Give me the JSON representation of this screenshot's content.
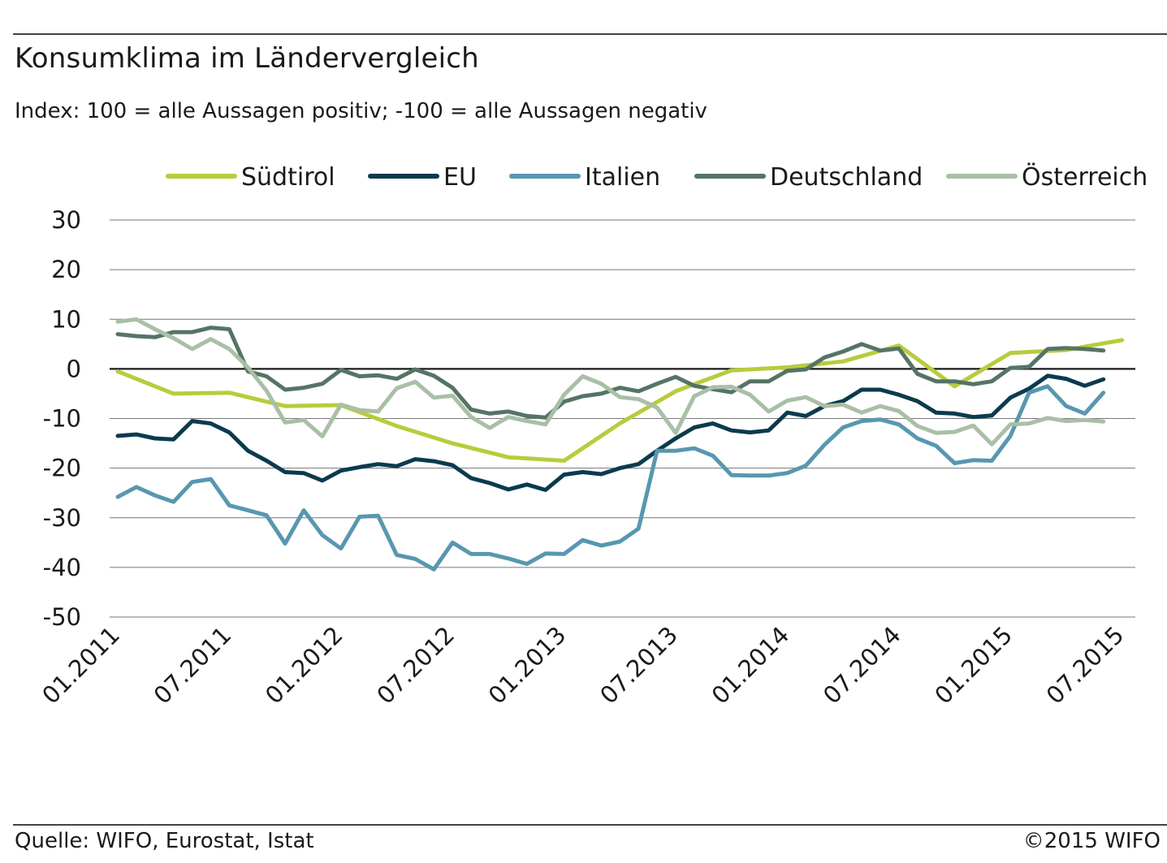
{
  "header": {
    "title": "Konsumklima im Ländervergleich",
    "subtitle": "Index: 100 = alle Aussagen positiv; -100 =  alle Aussagen negativ"
  },
  "footer": {
    "source": "Quelle: WIFO, Eurostat, Istat",
    "copyright": "©2015 WIFO"
  },
  "chart_data": {
    "type": "line",
    "title": "Konsumklima im Ländervergleich",
    "subtitle": "Index: 100 = alle Aussagen positiv; -100 =  alle Aussagen negativ",
    "xlabel": "",
    "ylabel": "",
    "ylim": [
      -50,
      30
    ],
    "yticks": [
      30,
      20,
      10,
      0,
      -10,
      -20,
      -30,
      -40,
      -50
    ],
    "x_tick_labels": [
      "01.2011",
      "07.2011",
      "01.2012",
      "07.2012",
      "01.2013",
      "07.2013",
      "01.2014",
      "07.2014",
      "01.2015",
      "07.2015"
    ],
    "x_tick_dates": [
      "2011-01",
      "2011-07",
      "2012-01",
      "2012-07",
      "2013-01",
      "2013-07",
      "2014-01",
      "2014-07",
      "2015-01",
      "2015-07"
    ],
    "grid": "horizontal",
    "legend": "top",
    "series": [
      {
        "name": "Südtirol",
        "color": "#b8cc3c",
        "x": [
          "2011-01",
          "2011-04",
          "2011-07",
          "2011-10",
          "2012-01",
          "2012-04",
          "2012-07",
          "2012-10",
          "2013-01",
          "2013-04",
          "2013-07",
          "2013-10",
          "2014-01",
          "2014-04",
          "2014-07",
          "2014-10",
          "2015-01",
          "2015-04",
          "2015-07"
        ],
        "values": [
          -0.5,
          -5,
          -4.8,
          -7.5,
          -7.3,
          -11.5,
          -15,
          -17.8,
          -18.5,
          -11,
          -4.5,
          -0.3,
          0.3,
          1.5,
          4.7,
          -3.5,
          3.2,
          3.8,
          5.8
        ]
      },
      {
        "name": "EU",
        "color": "#0b3a4e",
        "x": [
          "2011-01",
          "2011-02",
          "2011-03",
          "2011-04",
          "2011-05",
          "2011-06",
          "2011-07",
          "2011-08",
          "2011-09",
          "2011-10",
          "2011-11",
          "2011-12",
          "2012-01",
          "2012-02",
          "2012-03",
          "2012-04",
          "2012-05",
          "2012-06",
          "2012-07",
          "2012-08",
          "2012-09",
          "2012-10",
          "2012-11",
          "2012-12",
          "2013-01",
          "2013-02",
          "2013-03",
          "2013-04",
          "2013-05",
          "2013-06",
          "2013-07",
          "2013-08",
          "2013-09",
          "2013-10",
          "2013-11",
          "2013-12",
          "2014-01",
          "2014-02",
          "2014-03",
          "2014-04",
          "2014-05",
          "2014-06",
          "2014-07",
          "2014-08",
          "2014-09",
          "2014-10",
          "2014-11",
          "2014-12",
          "2015-01",
          "2015-02",
          "2015-03",
          "2015-04",
          "2015-05",
          "2015-06"
        ],
        "values": [
          -13.5,
          -13.2,
          -14,
          -14.2,
          -10.5,
          -11,
          -12.8,
          -16.5,
          -18.5,
          -20.8,
          -21,
          -22.5,
          -20.5,
          -19.8,
          -19.2,
          -19.6,
          -18.2,
          -18.6,
          -19.4,
          -22,
          -23,
          -24.3,
          -23.3,
          -24.4,
          -21.3,
          -20.8,
          -21.2,
          -20,
          -19.2,
          -16.5,
          -14,
          -11.8,
          -11,
          -12.4,
          -12.8,
          -12.4,
          -8.8,
          -9.5,
          -7.5,
          -6.5,
          -4.2,
          -4.2,
          -5.2,
          -6.5,
          -8.8,
          -9,
          -9.7,
          -9.4,
          -5.8,
          -4,
          -1.4,
          -2,
          -3.4,
          -2.1
        ]
      },
      {
        "name": "Italien",
        "color": "#5897b0",
        "x": [
          "2011-01",
          "2011-02",
          "2011-03",
          "2011-04",
          "2011-05",
          "2011-06",
          "2011-07",
          "2011-08",
          "2011-09",
          "2011-10",
          "2011-11",
          "2011-12",
          "2012-01",
          "2012-02",
          "2012-03",
          "2012-04",
          "2012-05",
          "2012-06",
          "2012-07",
          "2012-08",
          "2012-09",
          "2012-10",
          "2012-11",
          "2012-12",
          "2013-01",
          "2013-02",
          "2013-03",
          "2013-04",
          "2013-05",
          "2013-06",
          "2013-07",
          "2013-08",
          "2013-09",
          "2013-10",
          "2013-11",
          "2013-12",
          "2014-01",
          "2014-02",
          "2014-03",
          "2014-04",
          "2014-05",
          "2014-06",
          "2014-07",
          "2014-08",
          "2014-09",
          "2014-10",
          "2014-11",
          "2014-12",
          "2015-01",
          "2015-02",
          "2015-03",
          "2015-04",
          "2015-05",
          "2015-06"
        ],
        "values": [
          -25.8,
          -23.8,
          -25.5,
          -26.8,
          -22.8,
          -22.2,
          -27.5,
          -28.5,
          -29.5,
          -35.2,
          -28.5,
          -33.5,
          -36.2,
          -29.8,
          -29.6,
          -37.5,
          -38.3,
          -40.4,
          -35,
          -37.3,
          -37.3,
          -38.2,
          -39.3,
          -37.2,
          -37.3,
          -34.5,
          -35.6,
          -34.8,
          -32.2,
          -16.5,
          -16.5,
          -16,
          -17.5,
          -21.4,
          -21.5,
          -21.5,
          -21,
          -19.5,
          -15.3,
          -11.8,
          -10.5,
          -10.2,
          -11.2,
          -14,
          -15.5,
          -19,
          -18.4,
          -18.5,
          -13.5,
          -4.8,
          -3.5,
          -7.5,
          -9,
          -4.8
        ]
      },
      {
        "name": "Deutschland",
        "color": "#557466",
        "x": [
          "2011-01",
          "2011-02",
          "2011-03",
          "2011-04",
          "2011-05",
          "2011-06",
          "2011-07",
          "2011-08",
          "2011-09",
          "2011-10",
          "2011-11",
          "2011-12",
          "2012-01",
          "2012-02",
          "2012-03",
          "2012-04",
          "2012-05",
          "2012-06",
          "2012-07",
          "2012-08",
          "2012-09",
          "2012-10",
          "2012-11",
          "2012-12",
          "2013-01",
          "2013-02",
          "2013-03",
          "2013-04",
          "2013-05",
          "2013-06",
          "2013-07",
          "2013-08",
          "2013-09",
          "2013-10",
          "2013-11",
          "2013-12",
          "2014-01",
          "2014-02",
          "2014-03",
          "2014-04",
          "2014-05",
          "2014-06",
          "2014-07",
          "2014-08",
          "2014-09",
          "2014-10",
          "2014-11",
          "2014-12",
          "2015-01",
          "2015-02",
          "2015-03",
          "2015-04",
          "2015-05",
          "2015-06"
        ],
        "values": [
          7,
          6.6,
          6.4,
          7.4,
          7.4,
          8.3,
          8,
          -0.5,
          -1.5,
          -4.2,
          -3.8,
          -3,
          -0.2,
          -1.5,
          -1.3,
          -2,
          -0.1,
          -1.4,
          -3.8,
          -8.2,
          -9,
          -8.6,
          -9.5,
          -9.8,
          -6.6,
          -5.5,
          -5,
          -3.8,
          -4.5,
          -3,
          -1.6,
          -3.4,
          -4.1,
          -4.7,
          -2.5,
          -2.5,
          -0.4,
          -0.1,
          2.3,
          3.5,
          5,
          3.7,
          4.1,
          -1,
          -2.5,
          -2.5,
          -3.1,
          -2.5,
          0.2,
          0.4,
          4,
          4.2,
          4,
          3.7
        ]
      },
      {
        "name": "Österreich",
        "color": "#a9bfa6",
        "x": [
          "2011-01",
          "2011-02",
          "2011-03",
          "2011-04",
          "2011-05",
          "2011-06",
          "2011-07",
          "2011-08",
          "2011-09",
          "2011-10",
          "2011-11",
          "2011-12",
          "2012-01",
          "2012-02",
          "2012-03",
          "2012-04",
          "2012-05",
          "2012-06",
          "2012-07",
          "2012-08",
          "2012-09",
          "2012-10",
          "2012-11",
          "2012-12",
          "2013-01",
          "2013-02",
          "2013-03",
          "2013-04",
          "2013-05",
          "2013-06",
          "2013-07",
          "2013-08",
          "2013-09",
          "2013-10",
          "2013-11",
          "2013-12",
          "2014-01",
          "2014-02",
          "2014-03",
          "2014-04",
          "2014-05",
          "2014-06",
          "2014-07",
          "2014-08",
          "2014-09",
          "2014-10",
          "2014-11",
          "2014-12",
          "2015-01",
          "2015-02",
          "2015-03",
          "2015-04",
          "2015-05",
          "2015-06"
        ],
        "values": [
          9.5,
          10,
          8,
          6.2,
          4,
          6,
          4,
          0.3,
          -4.4,
          -10.8,
          -10.3,
          -13.6,
          -7.2,
          -8.3,
          -8.6,
          -3.9,
          -2.6,
          -5.8,
          -5.4,
          -9.7,
          -11.9,
          -9.7,
          -10.5,
          -11.2,
          -5.2,
          -1.5,
          -3,
          -5.7,
          -6.1,
          -7.8,
          -12.9,
          -5.5,
          -3.7,
          -3.6,
          -5.2,
          -8.6,
          -6.4,
          -5.7,
          -7.5,
          -7.2,
          -8.8,
          -7.5,
          -8.5,
          -11.5,
          -12.9,
          -12.7,
          -11.4,
          -15.2,
          -11.2,
          -11,
          -9.9,
          -10.5,
          -10.3,
          -10.6
        ]
      }
    ]
  }
}
